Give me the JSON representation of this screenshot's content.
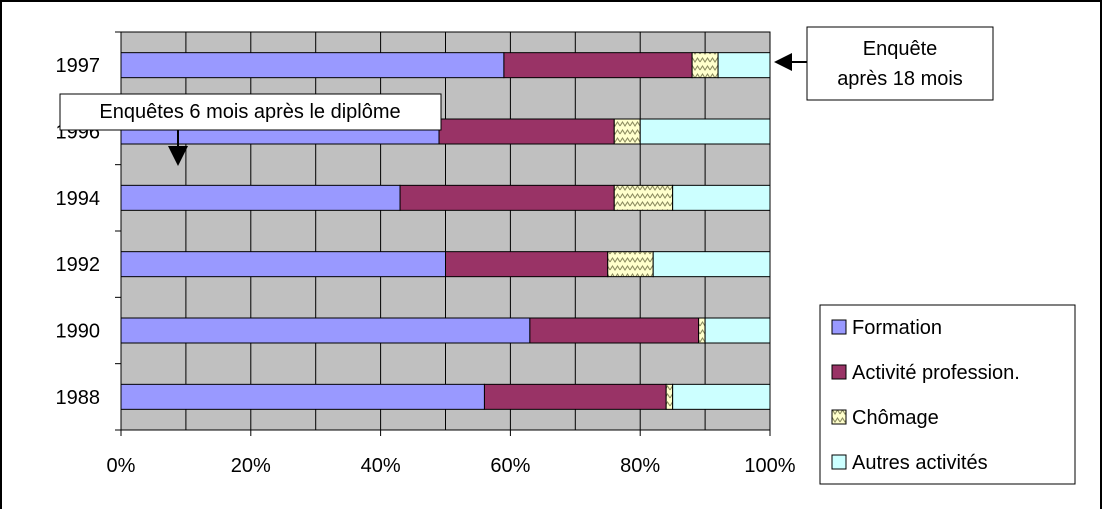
{
  "chart_data": {
    "type": "bar",
    "orientation": "horizontal",
    "stacked": true,
    "percent_stacked": true,
    "categories": [
      "1997",
      "1996",
      "1994",
      "1992",
      "1990",
      "1988"
    ],
    "series": [
      {
        "name": "Formation",
        "color": "#9999ff",
        "pattern": "solid",
        "values": [
          59,
          49,
          43,
          50,
          63,
          56
        ]
      },
      {
        "name": "Activité profession.",
        "color": "#993366",
        "pattern": "solid",
        "values": [
          29,
          27,
          33,
          25,
          26,
          28
        ]
      },
      {
        "name": "Chômage",
        "color": "#ffffcc",
        "pattern": "zigzag-hatch",
        "values": [
          4,
          4,
          9,
          7,
          1,
          1
        ]
      },
      {
        "name": "Autres activités",
        "color": "#ccffff",
        "pattern": "solid",
        "values": [
          8,
          20,
          15,
          18,
          10,
          15
        ]
      }
    ],
    "x_ticks": [
      "0%",
      "20%",
      "40%",
      "60%",
      "80%",
      "100%"
    ],
    "xlim": [
      0,
      100
    ],
    "grid": true,
    "plot_background": "#c0c0c0",
    "legend_position": "bottom-right",
    "annotations": [
      {
        "text": "Enquête\naprès 18 mois",
        "points_to": "1997"
      },
      {
        "text": "Enquêtes 6 mois après le diplôme",
        "points_to": "1996"
      }
    ]
  }
}
